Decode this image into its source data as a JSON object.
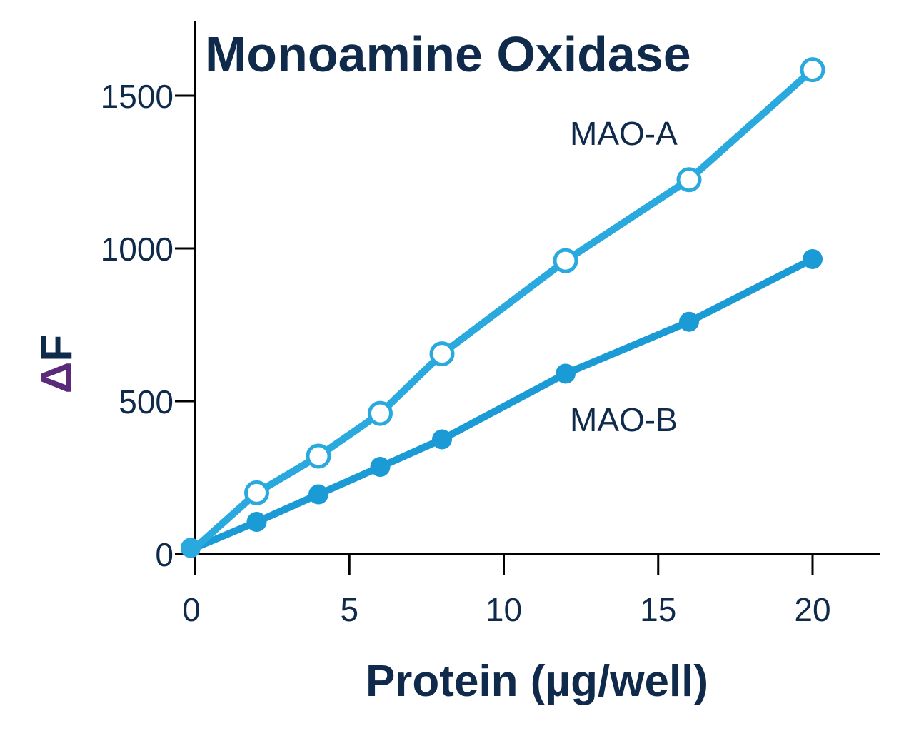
{
  "chart_data": {
    "type": "line",
    "title": "Monoamine Oxidase",
    "xlabel": "Protein (µg/well)",
    "ylabel_delta": "Δ",
    "ylabel_main": "F",
    "xlim": [
      0,
      22
    ],
    "ylim": [
      0,
      1700
    ],
    "xticks": [
      0,
      5,
      10,
      15,
      20
    ],
    "yticks": [
      0,
      500,
      1000,
      1500
    ],
    "grid": false,
    "series": [
      {
        "name": "MAO-A",
        "marker": "open-circle",
        "color": "#2aa9df",
        "x": [
          0,
          2,
          4,
          6,
          8,
          12,
          16,
          20
        ],
        "y": [
          20,
          200,
          320,
          460,
          655,
          960,
          1225,
          1585
        ]
      },
      {
        "name": "MAO-B",
        "marker": "filled-circle",
        "color": "#1b9bd5",
        "x": [
          0,
          2,
          4,
          6,
          8,
          12,
          16,
          20
        ],
        "y": [
          20,
          105,
          195,
          285,
          375,
          590,
          760,
          965
        ]
      }
    ],
    "colors": {
      "text": "#0f2a4a",
      "delta": "#5b2a7a",
      "axis": "#000000"
    }
  }
}
